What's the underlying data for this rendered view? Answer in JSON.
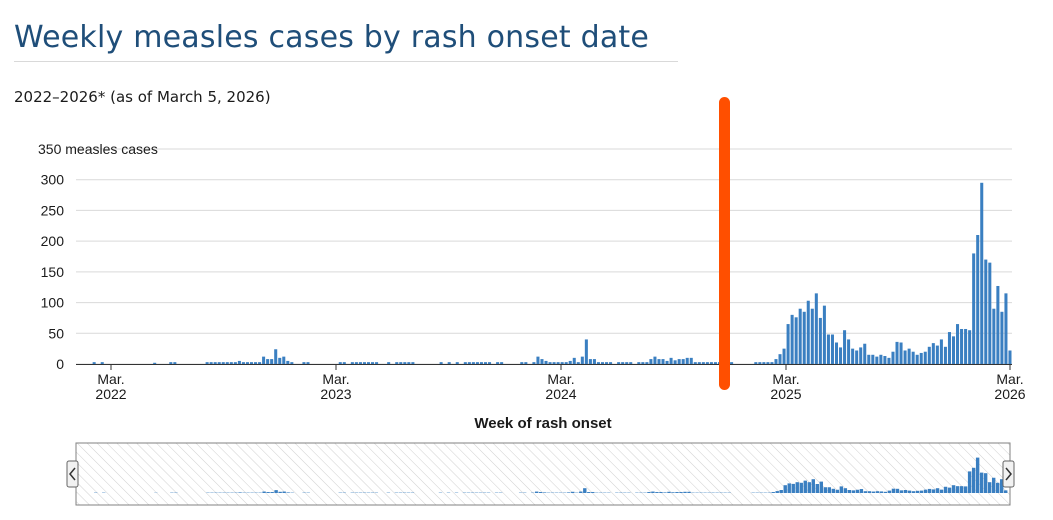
{
  "page": {
    "title": "Weekly measles cases by rash onset date",
    "subtitle": "2022–2026* (as of March 5, 2026)"
  },
  "colors": {
    "bar": "#3a7fc1",
    "grid": "#d9d9d9",
    "axis": "#333333",
    "marker": "#ff4f00",
    "title": "#1f4e79"
  },
  "chart_data": {
    "type": "bar",
    "title": "Weekly measles cases by rash onset date",
    "xlabel": "Week of rash onset",
    "ylabel": "measles cases",
    "y_top_label": "350 measles cases",
    "ylim": [
      0,
      350
    ],
    "yticks": [
      0,
      50,
      100,
      150,
      200,
      250,
      300,
      350
    ],
    "grid": true,
    "xticks": [
      {
        "label1": "Mar.",
        "label2": "2022"
      },
      {
        "label1": "Mar.",
        "label2": "2023"
      },
      {
        "label1": "Mar.",
        "label2": "2024"
      },
      {
        "label1": "Mar.",
        "label2": "2025"
      },
      {
        "label1": "Mar.",
        "label2": "2026"
      }
    ],
    "series": [
      {
        "name": "Weekly measles cases",
        "values": [
          0,
          0,
          0,
          0,
          3,
          0,
          3,
          0,
          0,
          0,
          0,
          0,
          0,
          0,
          0,
          0,
          0,
          0,
          0,
          2,
          0,
          0,
          0,
          3,
          3,
          0,
          0,
          0,
          0,
          0,
          0,
          0,
          3,
          3,
          3,
          3,
          3,
          3,
          3,
          3,
          5,
          3,
          3,
          3,
          3,
          3,
          12,
          8,
          8,
          24,
          10,
          12,
          5,
          3,
          0,
          0,
          3,
          3,
          0,
          0,
          0,
          0,
          0,
          0,
          0,
          3,
          3,
          0,
          3,
          3,
          3,
          3,
          3,
          3,
          3,
          0,
          0,
          3,
          0,
          3,
          3,
          3,
          3,
          3,
          0,
          0,
          0,
          0,
          0,
          0,
          3,
          0,
          3,
          0,
          3,
          0,
          3,
          3,
          3,
          3,
          3,
          3,
          3,
          0,
          3,
          3,
          0,
          0,
          0,
          0,
          3,
          3,
          0,
          3,
          12,
          8,
          5,
          3,
          3,
          3,
          3,
          3,
          5,
          10,
          3,
          12,
          40,
          8,
          8,
          3,
          3,
          3,
          3,
          0,
          3,
          3,
          3,
          3,
          0,
          3,
          3,
          3,
          8,
          12,
          8,
          8,
          5,
          10,
          6,
          8,
          8,
          10,
          10,
          3,
          3,
          3,
          3,
          3,
          3,
          3,
          3,
          3,
          3,
          0,
          0,
          0,
          0,
          0,
          3,
          3,
          3,
          3,
          3,
          8,
          16,
          25,
          65,
          80,
          76,
          90,
          85,
          103,
          90,
          115,
          75,
          95,
          48,
          48,
          35,
          27,
          55,
          40,
          25,
          22,
          27,
          33,
          15,
          15,
          12,
          15,
          13,
          10,
          20,
          36,
          35,
          22,
          25,
          20,
          15,
          18,
          20,
          28,
          34,
          30,
          40,
          28,
          52,
          45,
          65,
          57,
          57,
          55,
          180,
          210,
          295,
          170,
          165,
          90,
          127,
          85,
          115,
          22
        ]
      }
    ],
    "navigator": {
      "type": "area-mini"
    }
  }
}
